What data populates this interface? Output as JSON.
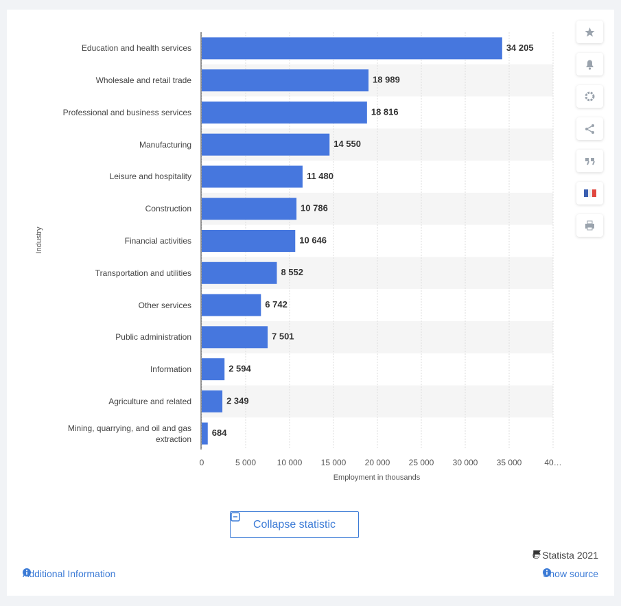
{
  "chart_data": {
    "type": "barh",
    "categories": [
      "Education and health services",
      "Wholesale and retail trade",
      "Professional and business services",
      "Manufacturing",
      "Leisure and hospitality",
      "Construction",
      "Financial activities",
      "Transportation and utilities",
      "Other services",
      "Public administration",
      "Information",
      "Agriculture and related",
      "Mining, quarrying, and oil and gas extraction"
    ],
    "values": [
      34205,
      18989,
      18816,
      14550,
      11480,
      10786,
      10646,
      8552,
      6742,
      7501,
      2594,
      2349,
      684
    ],
    "value_labels": [
      "34 205",
      "18 989",
      "18 816",
      "14 550",
      "11 480",
      "10 786",
      "10 646",
      "8 552",
      "6 742",
      "7 501",
      "2 594",
      "2 349",
      "684"
    ],
    "color": "#4677de",
    "xlim": [
      0,
      40000
    ],
    "xticks": [
      0,
      {
        "value": 5000,
        "label": "5 000"
      },
      {
        "value": 10000,
        "label": "10 000"
      },
      {
        "value": 15000,
        "label": "15 000"
      },
      {
        "value": 20000,
        "label": "20 000"
      },
      {
        "value": 25000,
        "label": "25 000"
      },
      {
        "value": 30000,
        "label": "30 000"
      },
      {
        "value": 35000,
        "label": "35 000"
      },
      {
        "value": 40000,
        "label": "40…"
      }
    ],
    "xlabel": "Employment in thousands",
    "ylabel": "Industry",
    "grid": true
  },
  "ui": {
    "collapse_button": "Collapse statistic",
    "copyright": "© Statista 2021",
    "additional_info": "Additional Information",
    "show_source": "Show source"
  }
}
